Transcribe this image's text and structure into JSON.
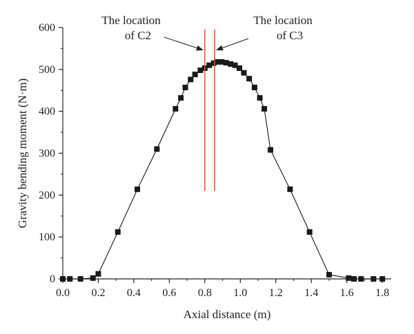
{
  "chart_data": {
    "type": "line",
    "title": "",
    "xlabel": "Axial distance (m)",
    "ylabel": "Gravity bending moment (N·m)",
    "xlim": [
      0.0,
      1.85
    ],
    "ylim": [
      0,
      600
    ],
    "xticks": [
      0.0,
      0.2,
      0.4,
      0.6,
      0.8,
      1.0,
      1.2,
      1.4,
      1.6,
      1.8
    ],
    "xtick_labels": [
      "0.0",
      "0.2",
      "0.4",
      "0.6",
      "0.8",
      "1.0",
      "1.2",
      "1.4",
      "1.6",
      "1.8"
    ],
    "yticks": [
      0,
      100,
      200,
      300,
      400,
      500,
      600
    ],
    "ytick_labels": [
      "0",
      "100",
      "200",
      "300",
      "400",
      "500",
      "600"
    ],
    "grid": false,
    "marker": "square",
    "line_color": "#000000",
    "marker_color": "#1a1a1a",
    "series": [
      {
        "x": [
          0.0,
          0.04,
          0.1,
          0.17,
          0.2,
          0.31,
          0.42,
          0.53,
          0.635,
          0.665,
          0.69,
          0.72,
          0.745,
          0.775,
          0.8,
          0.825,
          0.85,
          0.87,
          0.895,
          0.92,
          0.945,
          0.97,
          0.995,
          1.02,
          1.05,
          1.08,
          1.11,
          1.135,
          1.17,
          1.28,
          1.39,
          1.5,
          1.61,
          1.64,
          1.68,
          1.75,
          1.8
        ],
        "y": [
          0,
          0,
          0,
          2,
          12,
          112,
          214,
          310,
          406,
          432,
          457,
          476,
          488,
          498,
          503,
          510,
          515,
          518,
          518,
          516,
          513,
          510,
          503,
          492,
          478,
          457,
          432,
          406,
          308,
          214,
          112,
          10,
          2,
          0,
          0,
          0,
          0
        ]
      }
    ],
    "markers_vertical": [
      {
        "x": 0.8,
        "y_from": 210,
        "y_to": 595,
        "color": "#e8541e"
      },
      {
        "x": 0.855,
        "y_from": 210,
        "y_to": 595,
        "color": "#e8541e"
      }
    ],
    "annotations": [
      {
        "lines": [
          "The location",
          "of C2"
        ],
        "arrow_to": {
          "x": 0.8,
          "y": 540
        }
      },
      {
        "lines": [
          "The location",
          "of C3"
        ],
        "arrow_to": {
          "x": 0.855,
          "y": 540
        }
      }
    ]
  }
}
